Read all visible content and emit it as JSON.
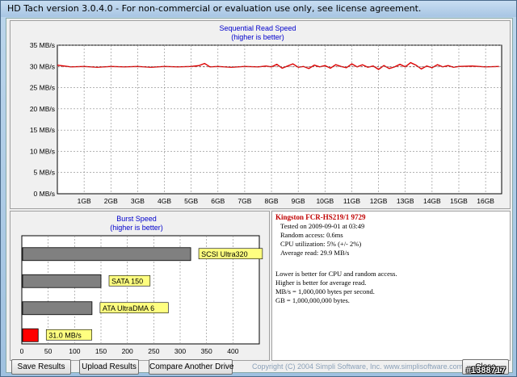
{
  "window": {
    "title": "HD Tach version 3.0.4.0  - For non-commercial or evaluation use only, see license agreement."
  },
  "seq_chart_data": {
    "type": "line",
    "title": "Sequential Read Speed",
    "subtitle": "(higher is better)",
    "xlabel": "",
    "ylabel": "",
    "ylim": [
      0,
      35
    ],
    "y_ticks": [
      "0 MB/s",
      "5 MB/s",
      "10 MB/s",
      "15 MB/s",
      "20 MB/s",
      "25 MB/s",
      "30 MB/s",
      "35 MB/s"
    ],
    "x_ticks": [
      "1GB",
      "2GB",
      "3GB",
      "4GB",
      "5GB",
      "6GB",
      "7GB",
      "8GB",
      "9GB",
      "10GB",
      "11GB",
      "12GB",
      "13GB",
      "14GB",
      "15GB",
      "16GB"
    ],
    "xlim": [
      0,
      16.6
    ],
    "grid": true,
    "line_color": "#dd0000",
    "series": [
      {
        "x": [
          0,
          0.5,
          1,
          1.5,
          2,
          2.5,
          3,
          3.5,
          4,
          4.5,
          5,
          5.3,
          5.5,
          5.7,
          6,
          6.5,
          7,
          7.5,
          7.8,
          8,
          8.2,
          8.4,
          8.6,
          8.8,
          9,
          9.2,
          9.4,
          9.6,
          9.8,
          10,
          10.2,
          10.4,
          10.6,
          10.8,
          11,
          11.2,
          11.4,
          11.6,
          11.8,
          12,
          12.2,
          12.4,
          12.6,
          12.8,
          13,
          13.2,
          13.4,
          13.6,
          13.8,
          14,
          14.2,
          14.4,
          14.6,
          14.8,
          15,
          15.5,
          16,
          16.5
        ],
        "y": [
          30.3,
          29.9,
          30.0,
          29.8,
          30.0,
          29.9,
          30.0,
          29.8,
          30.0,
          29.9,
          30.0,
          30.2,
          30.7,
          29.9,
          30.0,
          29.8,
          30.0,
          29.9,
          30.1,
          29.9,
          30.5,
          29.6,
          30.1,
          30.6,
          29.8,
          30.0,
          29.5,
          30.3,
          29.9,
          30.2,
          29.6,
          30.4,
          30.0,
          29.7,
          30.6,
          29.9,
          30.4,
          29.8,
          30.1,
          29.3,
          30.2,
          29.5,
          29.9,
          30.5,
          29.9,
          30.9,
          30.3,
          29.4,
          30.1,
          29.7,
          30.4,
          29.9,
          30.2,
          29.8,
          30.0,
          30.1,
          29.9,
          30.0
        ]
      }
    ]
  },
  "burst_chart_data": {
    "type": "bar",
    "title": "Burst Speed",
    "subtitle": "(higher is better)",
    "xlim": [
      0,
      450
    ],
    "x_ticks": [
      "0",
      "50",
      "100",
      "150",
      "200",
      "250",
      "300",
      "350",
      "400"
    ],
    "grid": true,
    "categories": [
      "SCSI Ultra320",
      "SATA 150",
      "ATA UltraDMA 6",
      "31.0 MB/s"
    ],
    "values": [
      320,
      150,
      133,
      31.0
    ],
    "colors": [
      "#808080",
      "#808080",
      "#808080",
      "#ff0000"
    ],
    "label_bg": "#ffff80"
  },
  "info": {
    "title": "Kingston FCR-HS219/1 9729",
    "lines": [
      "Tested on 2009-09-01 at 03:49",
      "Random access: 0.6ms",
      "CPU utilization: 5% (+/- 2%)",
      "Average read: 29.9 MB/s"
    ],
    "notes": [
      "Lower is better for CPU and random access.",
      "Higher is better for average read.",
      "MB/s = 1,000,000 bytes per second.",
      "GB = 1,000,000,000 bytes."
    ]
  },
  "buttons": {
    "save": "Save Results",
    "upload": "Upload Results",
    "compare": "Compare Another Drive",
    "close": "Close"
  },
  "copyright": "Copyright (C) 2004 Simpli Software, Inc. www.simplisoftware.com",
  "watermark": "#1388717"
}
